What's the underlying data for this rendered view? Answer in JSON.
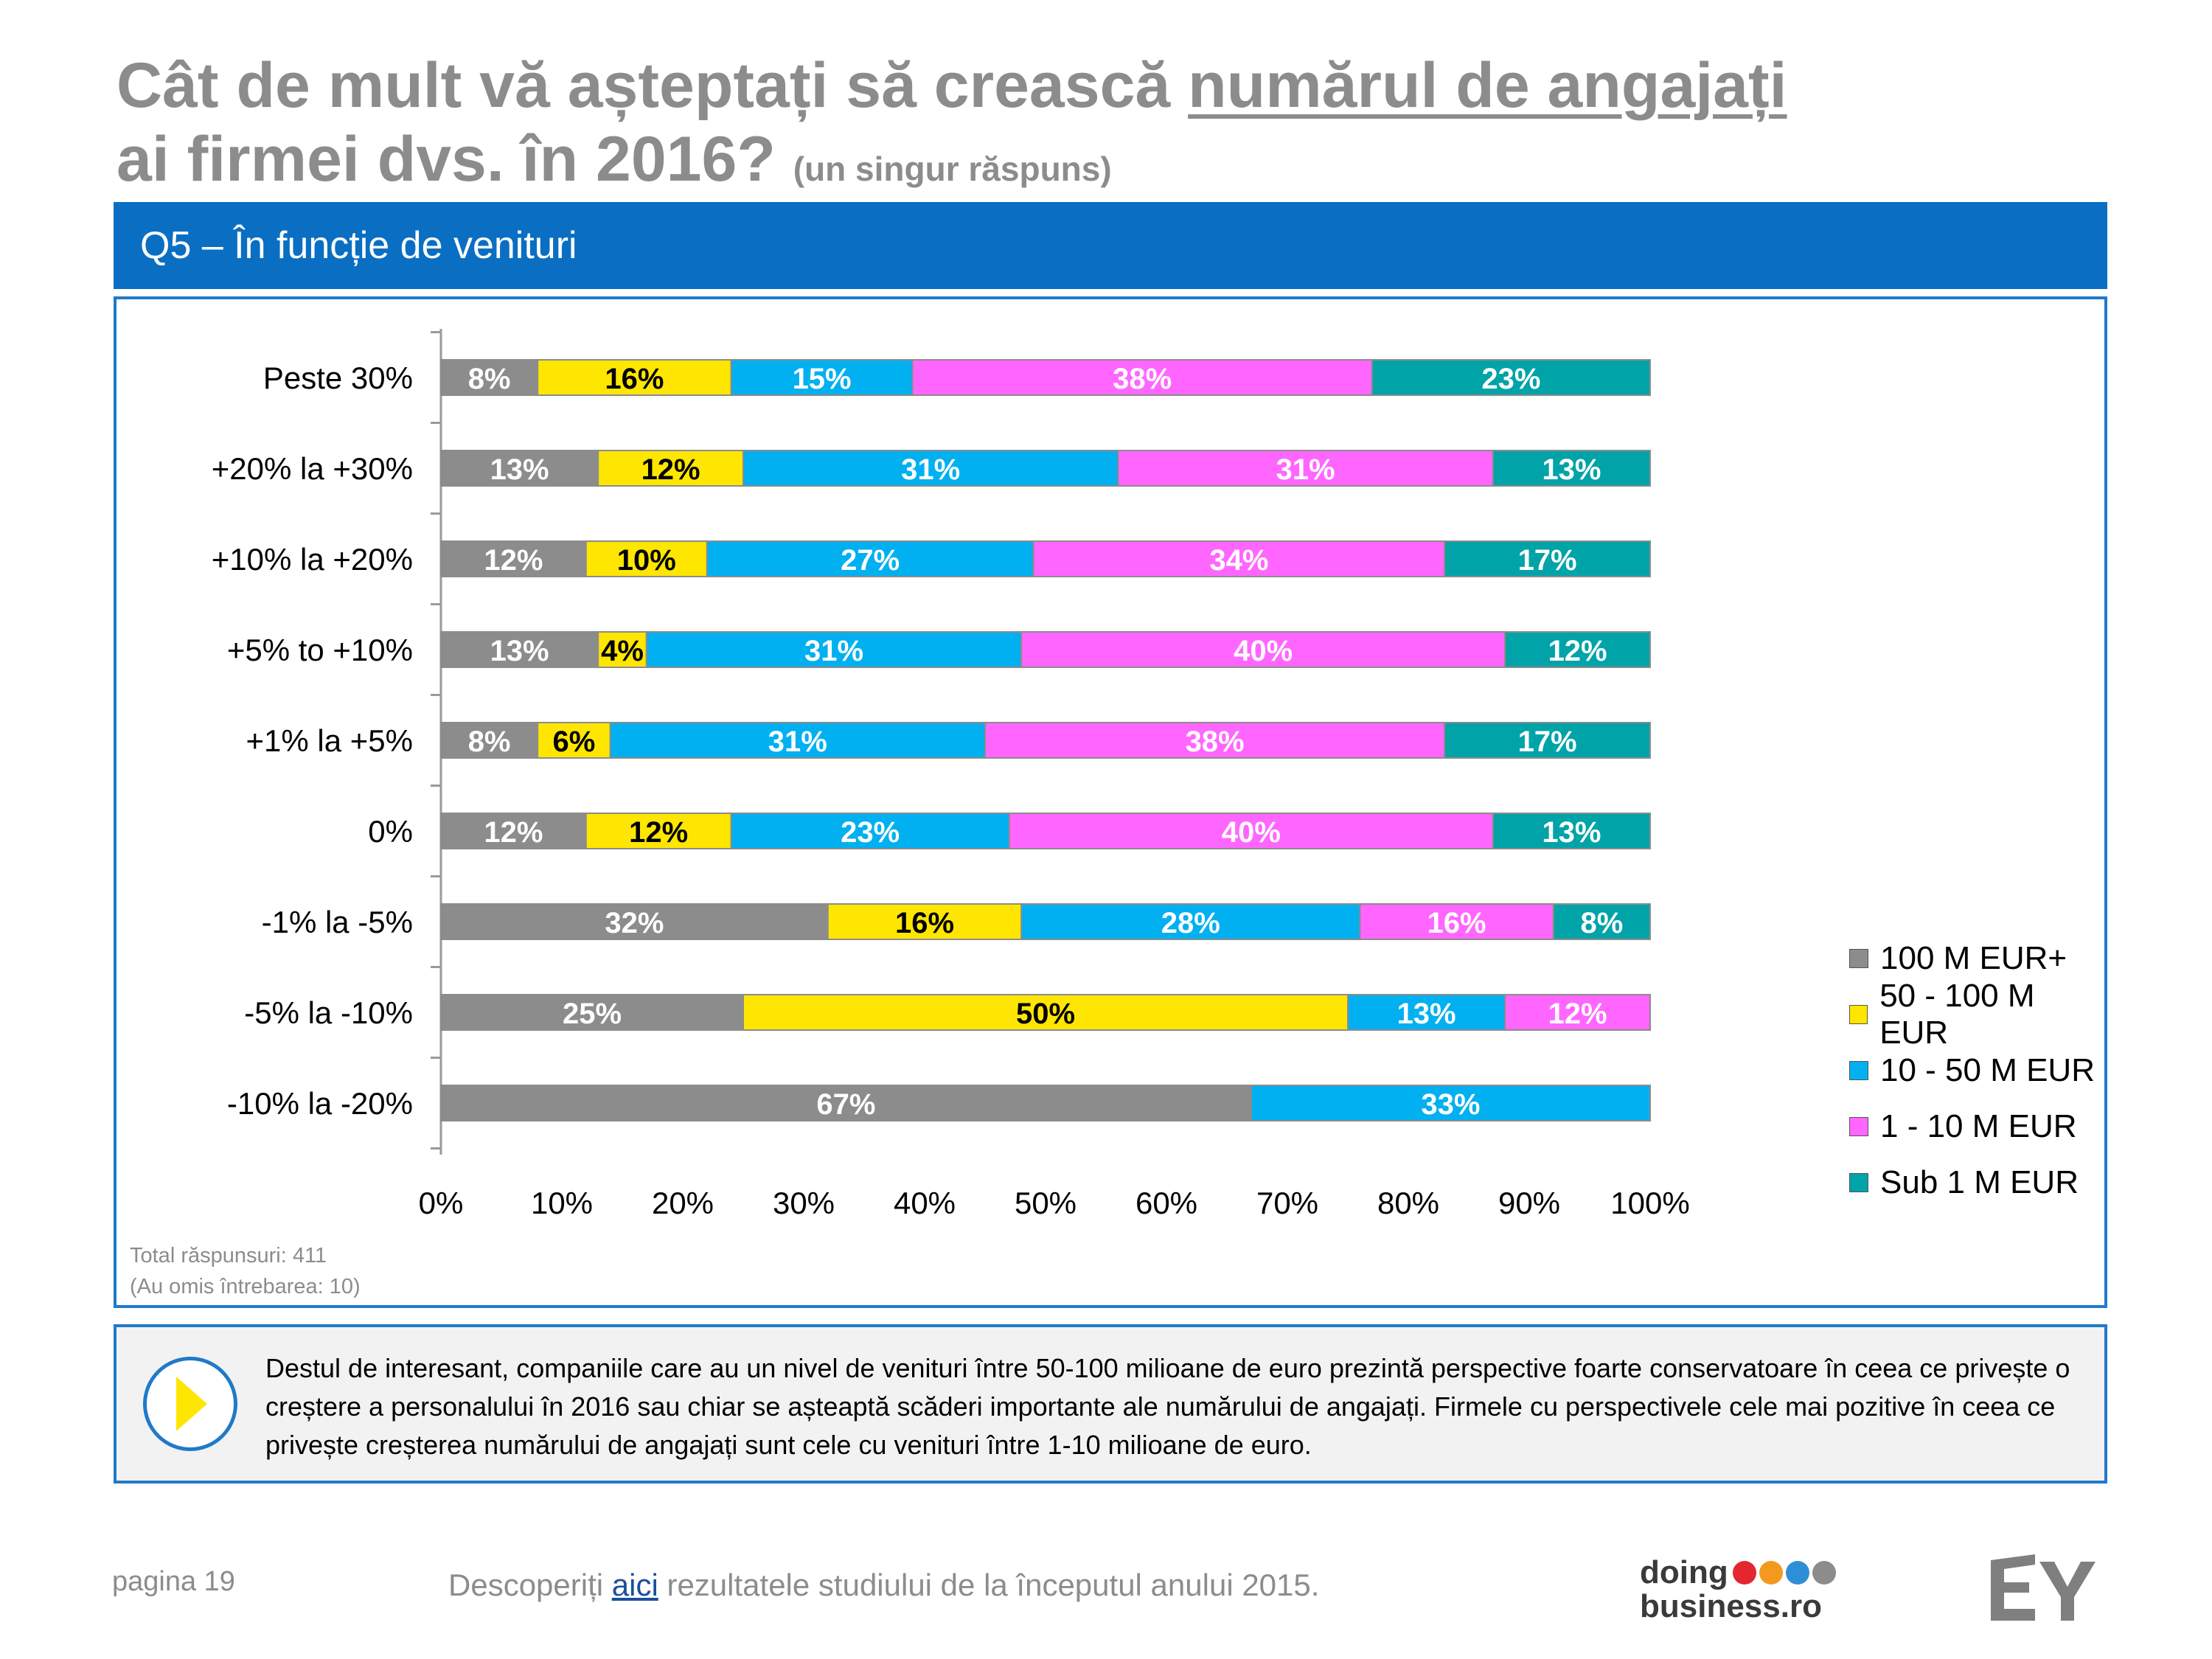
{
  "title": {
    "part1": "Cât de mult vă așteptați să crească ",
    "underlined": "numărul de angajați",
    "part2": "ai firmei dvs. în 2016?",
    "subtitle": "(un singur răspuns)"
  },
  "section_label": "Q5 – În funcție de venituri",
  "footnote": {
    "line1": "Total răspunsuri: 411",
    "line2": "(Au omis întrebarea: 10)"
  },
  "insight": {
    "text": "Destul de interesant, companiile care au un nivel de venituri între 50-100 milioane de euro prezintă perspective foarte conservatoare în ceea ce privește o creștere a personalului în 2016 sau chiar se așteaptă scăderi importante ale numărului de angajați. Firmele cu perspectivele cele mai pozitive în ceea ce privește creșterea numărului de angajați sunt cele cu venituri între 1-10 milioane de euro."
  },
  "footer": {
    "page": "pagina 19",
    "text_before": "Descoperiți ",
    "link": "aici",
    "text_after": " rezultatele studiului de la începutul anului 2015.",
    "logo_line1": "doing",
    "logo_line2": "business.ro",
    "logo_dot_colors": [
      "#e3262f",
      "#f39a1e",
      "#2e8fd6",
      "#8c8c8c"
    ],
    "ey_logo": "EY"
  },
  "chart_data": {
    "type": "bar",
    "orientation": "horizontal",
    "stacked": true,
    "categories": [
      "Peste 30%",
      "+20% la +30%",
      "+10% la +20%",
      "+5% to +10%",
      "+1% la +5%",
      "0%",
      "-1% la -5%",
      "-5% la -10%",
      "-10% la -20%"
    ],
    "series": [
      {
        "name": "100 M EUR+",
        "color": "#8c8c8c",
        "label_color": "#ffffff",
        "values": [
          8,
          13,
          12,
          13,
          8,
          12,
          32,
          25,
          67
        ]
      },
      {
        "name": "50 - 100 M EUR",
        "color": "#ffe600",
        "label_color": "#000000",
        "values": [
          16,
          12,
          10,
          4,
          6,
          12,
          16,
          50,
          0
        ]
      },
      {
        "name": "10 - 50 M EUR",
        "color": "#00b0f0",
        "label_color": "#ffffff",
        "values": [
          15,
          31,
          27,
          31,
          31,
          23,
          28,
          13,
          33
        ]
      },
      {
        "name": "1 - 10 M EUR",
        "color": "#ff66ff",
        "label_color": "#ffffff",
        "values": [
          38,
          31,
          34,
          40,
          38,
          40,
          16,
          12,
          0
        ]
      },
      {
        "name": "Sub 1 M EUR",
        "color": "#00a3a8",
        "label_color": "#ffffff",
        "values": [
          23,
          13,
          17,
          12,
          17,
          13,
          8,
          0,
          0
        ]
      }
    ],
    "xaxis": {
      "ticks": [
        "0%",
        "10%",
        "20%",
        "30%",
        "40%",
        "50%",
        "60%",
        "70%",
        "80%",
        "90%",
        "100%"
      ],
      "range": [
        0,
        100
      ]
    },
    "value_suffix": "%",
    "legend_position": "right"
  }
}
